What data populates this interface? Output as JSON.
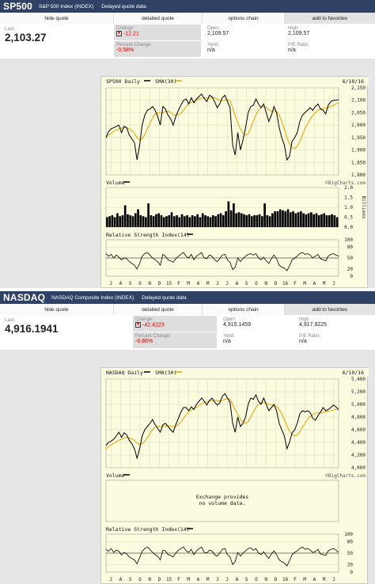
{
  "quotes": [
    {
      "symbol": "SP500",
      "index_name": "S&P 500 Index (INDEX)",
      "delayed": "Delayed quote data",
      "tabs": [
        "hide quote",
        "detailed quote",
        "options chain",
        "add to favorites"
      ],
      "last_label": "Last:",
      "last": "2,103.27",
      "change_label": "Change:",
      "change": "-12.21",
      "pct_label": "Percent Change:",
      "pct": "-0.58%",
      "open_label": "Open:",
      "open": "2,109.57",
      "yield_label": "Yield:",
      "yield": "n/a",
      "high_label": "High:",
      "high": "2,109.57",
      "pe_label": "P/E Ratio:",
      "pe": "n/a",
      "chart_data": {
        "type": "line",
        "title": "SP500 Daily",
        "legend": [
          "SP500 Daily",
          "SMA(30)"
        ],
        "date": "6/10/16",
        "watermark": "©BigCharts.com",
        "price_ticks": [
          "2,150",
          "2,100",
          "2,050",
          "2,000",
          "1,950",
          "1,900",
          "1,850",
          "1,800"
        ],
        "ylim": [
          1800,
          2150
        ],
        "x_labels": [
          "J",
          "A",
          "S",
          "O",
          "N",
          "D",
          "15",
          "F",
          "M",
          "A",
          "M",
          "J",
          "J",
          "A",
          "S",
          "O",
          "N",
          "D",
          "16",
          "F",
          "M",
          "A",
          "M",
          "J"
        ],
        "series": [
          {
            "name": "SP500 Daily",
            "values": [
              1950,
              1975,
              1985,
              1990,
              1995,
              2000,
              1970,
              1995,
              1990,
              1960,
              1945,
              1930,
              1860,
              1920,
              2000,
              2040,
              2060,
              2065,
              2075,
              2060,
              2035,
              2000,
              2075,
              2065,
              2040,
              2025,
              2000,
              2035,
              2060,
              2080,
              2100,
              2105,
              2085,
              2110,
              2090,
              2105,
              2115,
              2125,
              2108,
              2095,
              2120,
              2115,
              2095,
              2070,
              2085,
              2110,
              2120,
              2095,
              2070,
              1920,
              1880,
              1970,
              1900,
              1940,
              1990,
              2050,
              2075,
              2080,
              2105,
              2085,
              2070,
              2085,
              2050,
              2015,
              2040,
              2075,
              2050,
              1990,
              1950,
              1920,
              1860,
              1875,
              1935,
              1950,
              1970,
              2015,
              2040,
              2050,
              2060,
              2070,
              2060,
              2075,
              2085,
              2065,
              2060,
              2045,
              2080,
              2095,
              2100,
              2100,
              2103
            ]
          },
          {
            "name": "SMA(30)",
            "values": [
              1950,
              1960,
              1968,
              1975,
              1980,
              1985,
              1988,
              1990,
              1990,
              1985,
              1978,
              1968,
              1950,
              1940,
              1945,
              1962,
              1985,
              2008,
              2028,
              2045,
              2050,
              2048,
              2050,
              2055,
              2055,
              2050,
              2042,
              2040,
              2042,
              2048,
              2060,
              2075,
              2085,
              2092,
              2095,
              2100,
              2105,
              2110,
              2110,
              2108,
              2108,
              2110,
              2110,
              2105,
              2100,
              2098,
              2100,
              2102,
              2098,
              2070,
              2038,
              2010,
              1985,
              1968,
              1960,
              1965,
              1988,
              2015,
              2042,
              2060,
              2070,
              2075,
              2072,
              2062,
              2055,
              2058,
              2055,
              2040,
              2015,
              1985,
              1950,
              1925,
              1910,
              1905,
              1915,
              1935,
              1960,
              1985,
              2005,
              2025,
              2038,
              2050,
              2060,
              2065,
              2068,
              2068,
              2070,
              2075,
              2080,
              2085,
              2090
            ]
          }
        ],
        "volume": {
          "label": "Volume",
          "ticks": [
            "2.0",
            "1.5",
            "1.0",
            "0.5",
            "0.0"
          ],
          "unit": "Billions",
          "ylim": [
            0,
            2.0
          ],
          "values": [
            0.5,
            0.55,
            0.6,
            0.5,
            0.7,
            0.55,
            0.6,
            1.1,
            0.65,
            0.6,
            0.55,
            0.7,
            0.9,
            0.6,
            0.55,
            0.5,
            1.2,
            0.6,
            0.55,
            0.65,
            0.7,
            0.6,
            0.5,
            0.55,
            0.6,
            0.75,
            0.55,
            0.6,
            0.5,
            0.65,
            0.55,
            0.6,
            0.5,
            0.6,
            0.55,
            0.65,
            0.5,
            0.7,
            0.6,
            0.55,
            0.5,
            0.6,
            0.55,
            0.65,
            0.7,
            0.6,
            0.8,
            1.3,
            0.85,
            1.2,
            0.7,
            0.75,
            0.7,
            0.65,
            0.6,
            0.65,
            0.55,
            0.6,
            0.6,
            0.65,
            0.55,
            1.2,
            0.6,
            0.55,
            0.7,
            0.8,
            0.8,
            0.9,
            0.85,
            0.8,
            0.9,
            0.75,
            0.8,
            0.7,
            0.75,
            0.8,
            0.7,
            0.65,
            0.7,
            0.75,
            0.65,
            0.7,
            0.6,
            0.65,
            0.7,
            0.6,
            0.6,
            0.65,
            0.6,
            0.5
          ]
        },
        "rsi": {
          "label": "Relative Strength Index(14)",
          "ticks": [
            "100",
            "80",
            "50",
            "20",
            "0"
          ],
          "ylim": [
            0,
            100
          ],
          "values": [
            62,
            55,
            60,
            50,
            58,
            52,
            45,
            50,
            48,
            40,
            35,
            30,
            20,
            35,
            55,
            62,
            65,
            58,
            50,
            45,
            40,
            30,
            60,
            55,
            45,
            42,
            38,
            48,
            55,
            60,
            65,
            55,
            50,
            60,
            45,
            55,
            60,
            65,
            50,
            48,
            58,
            55,
            45,
            40,
            48,
            58,
            60,
            45,
            38,
            18,
            25,
            50,
            40,
            48,
            55,
            60,
            62,
            58,
            62,
            50,
            45,
            52,
            42,
            35,
            48,
            58,
            48,
            30,
            25,
            22,
            15,
            28,
            45,
            50,
            55,
            62,
            65,
            60,
            62,
            58,
            50,
            55,
            60,
            48,
            45,
            42,
            55,
            60,
            62,
            58,
            55
          ]
        }
      }
    },
    {
      "symbol": "NASDAQ",
      "index_name": "NASDAQ Composite Index (INDEX)",
      "delayed": "Delayed quote data",
      "tabs": [
        "hide quote",
        "detailed quote",
        "options chain",
        "add to favorites"
      ],
      "last_label": "Last:",
      "last": "4,916.1941",
      "change_label": "Change:",
      "change": "-42.4223",
      "pct_label": "Percent Change:",
      "pct": "-0.86%",
      "open_label": "Open:",
      "open": "4,915.1459",
      "yield_label": "Yield:",
      "yield": "n/a",
      "high_label": "High:",
      "high": "4,917.9225",
      "pe_label": "P/E Ratio:",
      "pe": "n/a",
      "chart_data": {
        "type": "line",
        "title": "NASDAQ Daily",
        "legend": [
          "NASDAQ Daily",
          "SMA(30)"
        ],
        "date": "6/10/16",
        "watermark": "©BigCharts.com",
        "price_ticks": [
          "5,400",
          "5,200",
          "5,000",
          "4,800",
          "4,600",
          "4,400",
          "4,200",
          "4,000"
        ],
        "ylim": [
          4000,
          5400
        ],
        "x_labels": [
          "J",
          "A",
          "S",
          "O",
          "N",
          "D",
          "15",
          "F",
          "M",
          "A",
          "M",
          "J",
          "J",
          "A",
          "S",
          "O",
          "N",
          "D",
          "16",
          "F",
          "M",
          "A",
          "M",
          "J"
        ],
        "series": [
          {
            "name": "NASDAQ Daily",
            "values": [
              4350,
              4400,
              4420,
              4450,
              4500,
              4560,
              4480,
              4550,
              4520,
              4430,
              4380,
              4300,
              4150,
              4300,
              4500,
              4600,
              4650,
              4700,
              4760,
              4680,
              4620,
              4560,
              4680,
              4700,
              4650,
              4600,
              4560,
              4680,
              4780,
              4880,
              4950,
              4950,
              4900,
              4960,
              4920,
              5000,
              5050,
              5100,
              5050,
              4990,
              5060,
              5100,
              5040,
              4990,
              5020,
              5130,
              5170,
              5100,
              5030,
              4700,
              4560,
              4800,
              4650,
              4700,
              4800,
              5000,
              5100,
              5080,
              5150,
              5050,
              5000,
              5100,
              5000,
              4900,
              4950,
              5000,
              4900,
              4700,
              4600,
              4500,
              4300,
              4400,
              4550,
              4600,
              4700,
              4850,
              4900,
              4880,
              4900,
              4870,
              4780,
              4750,
              4820,
              4880,
              4950,
              4900,
              4920,
              4950,
              4990,
              4960,
              4916
            ]
          },
          {
            "name": "SMA(30)",
            "values": [
              4300,
              4330,
              4360,
              4385,
              4410,
              4435,
              4450,
              4470,
              4480,
              4470,
              4455,
              4430,
              4390,
              4370,
              4380,
              4420,
              4475,
              4540,
              4600,
              4640,
              4655,
              4650,
              4650,
              4660,
              4665,
              4660,
              4650,
              4655,
              4680,
              4720,
              4780,
              4840,
              4880,
              4910,
              4930,
              4950,
              4980,
              5010,
              5030,
              5040,
              5050,
              5060,
              5065,
              5060,
              5055,
              5060,
              5080,
              5090,
              5080,
              5000,
              4910,
              4840,
              4770,
              4720,
              4700,
              4730,
              4800,
              4880,
              4950,
              5000,
              5020,
              5030,
              5020,
              5000,
              4990,
              4985,
              4970,
              4920,
              4850,
              4760,
              4660,
              4580,
              4520,
              4500,
              4520,
              4570,
              4640,
              4700,
              4760,
              4810,
              4840,
              4860,
              4870,
              4870,
              4875,
              4880,
              4890,
              4900,
              4910,
              4920,
              4930
            ]
          }
        ],
        "volume": {
          "label": "Volume",
          "notice": [
            "Exchange provides",
            "no volume data."
          ]
        },
        "rsi": {
          "label": "Relative Strength Index(14)",
          "ticks": [
            "100",
            "80",
            "50",
            "20",
            "0"
          ],
          "ylim": [
            0,
            100
          ],
          "values": [
            60,
            55,
            62,
            52,
            58,
            55,
            45,
            52,
            48,
            40,
            36,
            32,
            22,
            38,
            55,
            62,
            66,
            60,
            52,
            46,
            42,
            32,
            58,
            56,
            46,
            44,
            40,
            50,
            58,
            62,
            66,
            56,
            52,
            60,
            46,
            56,
            62,
            66,
            52,
            50,
            58,
            56,
            46,
            42,
            50,
            60,
            62,
            46,
            40,
            20,
            28,
            52,
            42,
            50,
            56,
            62,
            64,
            58,
            62,
            50,
            46,
            54,
            44,
            36,
            48,
            56,
            46,
            32,
            28,
            24,
            16,
            30,
            46,
            52,
            56,
            62,
            66,
            60,
            62,
            58,
            52,
            54,
            60,
            48,
            46,
            44,
            56,
            60,
            62,
            58,
            52
          ]
        }
      }
    }
  ]
}
